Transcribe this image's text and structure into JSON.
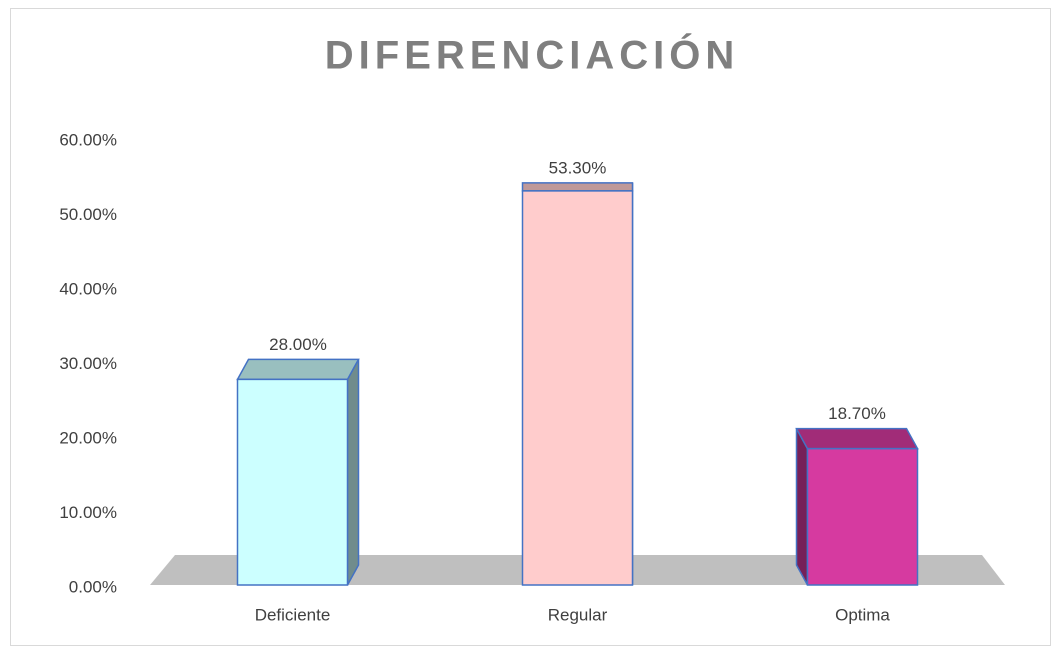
{
  "chart_data": {
    "type": "bar3d",
    "title": "DIFERENCIACIÓN",
    "categories": [
      "Deficiente",
      "Regular",
      "Optima"
    ],
    "values": [
      28,
      53.3,
      18.7
    ],
    "value_labels": [
      "28.00%",
      "53.30%",
      "18.70%"
    ],
    "colors": [
      "#ccffff",
      "#ffcccc",
      "#d63aa0"
    ],
    "ylim": [
      0,
      60
    ],
    "yticks": [
      {
        "value": 0,
        "label": "0.00%"
      },
      {
        "value": 10,
        "label": "10.00%"
      },
      {
        "value": 20,
        "label": "20.00%"
      },
      {
        "value": 30,
        "label": "30.00%"
      },
      {
        "value": 40,
        "label": "40.00%"
      },
      {
        "value": 50,
        "label": "50.00%"
      },
      {
        "value": 60,
        "label": "60.00%"
      }
    ],
    "grid": false
  }
}
